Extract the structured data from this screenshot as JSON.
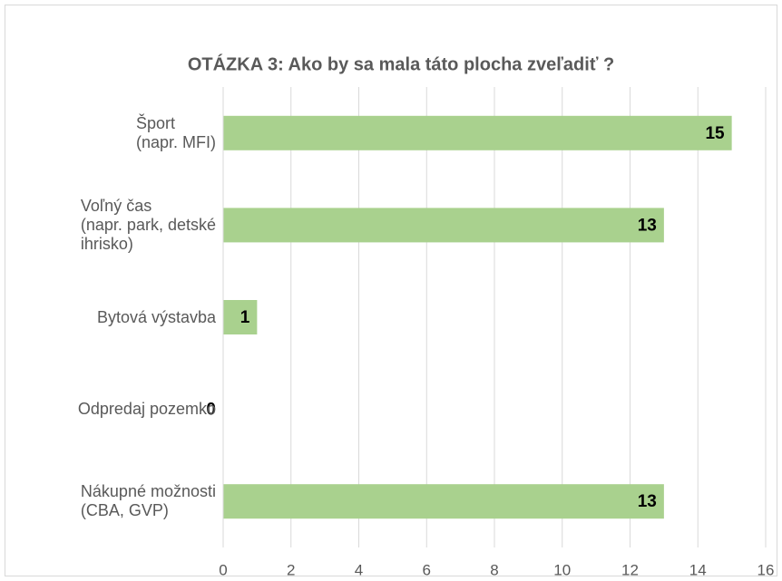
{
  "chart_data": {
    "type": "barh",
    "title": "OTÁZKA 3: Ako by sa mala táto plocha zveľadiť ?",
    "categories": [
      "Šport\n(napr. MFI)",
      "Voľný čas\n(napr. park, detské\nihrisko)",
      "Bytová výstavba",
      "Odpredaj pozemko",
      "Nákupné možnosti\n(CBA, GVP)"
    ],
    "values": [
      15,
      13,
      1,
      0,
      13
    ],
    "color": "#a9d18e",
    "xlim": [
      0,
      16
    ],
    "xticks": [
      0,
      2,
      4,
      6,
      8,
      10,
      12,
      14,
      16
    ],
    "grid": true
  }
}
